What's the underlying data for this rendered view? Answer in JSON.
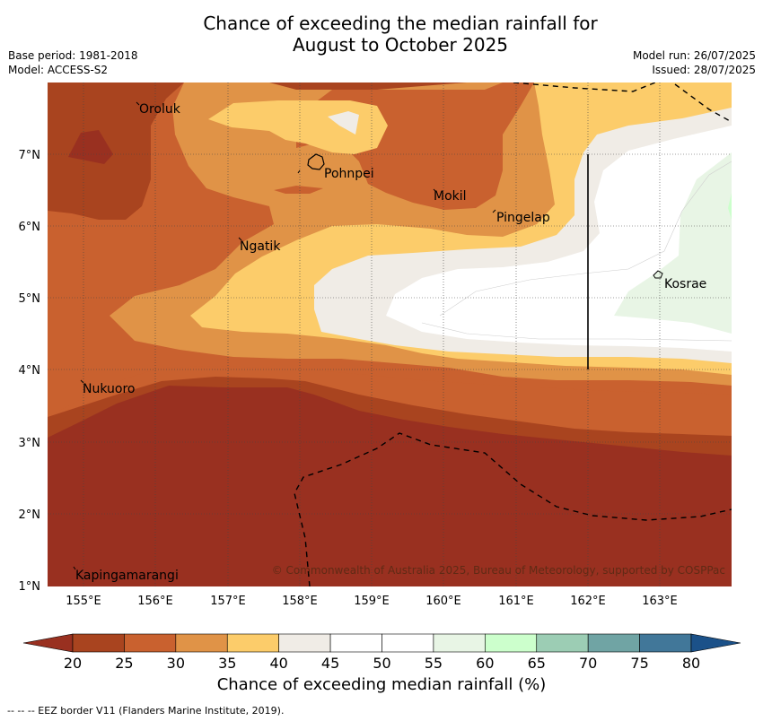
{
  "title": {
    "line1": "Chance of exceeding the median rainfall for",
    "line2": "August to October 2025"
  },
  "meta_left": [
    "Base period: 1981-2018",
    "Model: ACCESS-S2"
  ],
  "meta_right": [
    "Model run: 26/07/2025",
    "Issued: 28/07/2025"
  ],
  "map": {
    "lon_labels": [
      "155°E",
      "156°E",
      "157°E",
      "158°E",
      "159°E",
      "160°E",
      "161°E",
      "162°E",
      "163°E"
    ],
    "lat_labels": [
      "7°N",
      "6°N",
      "5°N",
      "4°N",
      "3°N",
      "2°N",
      "1°N"
    ],
    "places": [
      {
        "name": "Oroluk"
      },
      {
        "name": "Pohnpei"
      },
      {
        "name": "Mokil"
      },
      {
        "name": "Pingelap"
      },
      {
        "name": "Ngatik"
      },
      {
        "name": "Kosrae"
      },
      {
        "name": "Nukuoro"
      },
      {
        "name": "Kapingamarangi"
      }
    ],
    "copyright": "© Commonwealth of Australia 2025, Bureau of Meteorology, supported by COSPPac"
  },
  "colorbar": {
    "ticks": [
      "20",
      "25",
      "30",
      "35",
      "40",
      "45",
      "50",
      "55",
      "60",
      "65",
      "70",
      "75",
      "80"
    ],
    "colors": [
      "#a9441f",
      "#c9612f",
      "#e09347",
      "#fccc6a",
      "#f0ece6",
      "#ffffff",
      "#ffffff",
      "#e8f5e5",
      "#ccffcc",
      "#9ccdb4",
      "#70a4a4",
      "#417799"
    ],
    "under_color": "#993020",
    "over_color": "#1b5189",
    "label": "Chance of exceeding median rainfall (%)"
  },
  "footer": "--  --  -- EEZ border V11 (Flanders Marine Institute, 2019)."
}
